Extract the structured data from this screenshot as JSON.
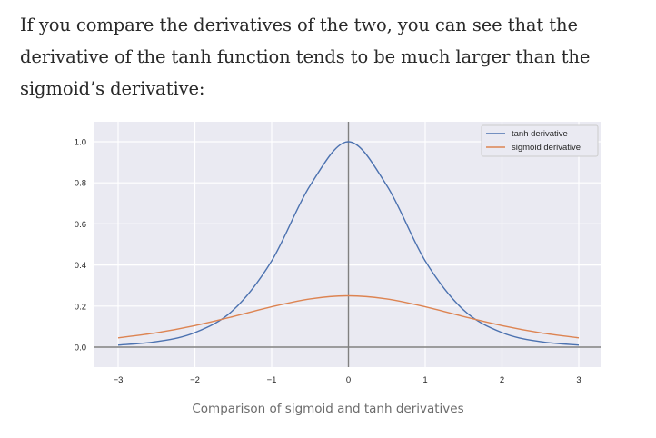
{
  "article": {
    "paragraph": "If you compare the derivatives of the two, you can see that the derivative of the tanh function tends to be much larger than the sigmoid’s derivative:",
    "caption": "Comparison of sigmoid and tanh derivatives"
  },
  "chart_data": {
    "type": "line",
    "title": "",
    "xlabel": "",
    "ylabel": "",
    "xlim": [
      -3.2,
      3.3
    ],
    "ylim": [
      -0.05,
      1.1
    ],
    "xticks": [
      -3,
      -2,
      -1,
      0,
      1,
      2,
      3
    ],
    "xtick_labels": [
      "−3",
      "−2",
      "−1",
      "0",
      "1",
      "2",
      "3"
    ],
    "yticks": [
      0.0,
      0.2,
      0.4,
      0.6,
      0.8,
      1.0
    ],
    "ytick_labels": [
      "0.0",
      "0.2",
      "0.4",
      "0.6",
      "0.8",
      "1.0"
    ],
    "grid": true,
    "legend_position": "top-right",
    "x": [
      -3,
      -2.5,
      -2,
      -1.5,
      -1,
      -0.5,
      0,
      0.5,
      1,
      1.5,
      2,
      2.5,
      3
    ],
    "series": [
      {
        "name": "tanh derivative",
        "color": "#4c72b0",
        "values": [
          0.0099,
          0.0266,
          0.0707,
          0.1807,
          0.42,
          0.7864,
          1.0,
          0.7864,
          0.42,
          0.1807,
          0.0707,
          0.0266,
          0.0099
        ]
      },
      {
        "name": "sigmoid derivative",
        "color": "#dd8452",
        "values": [
          0.0452,
          0.0701,
          0.105,
          0.1491,
          0.1966,
          0.235,
          0.25,
          0.235,
          0.1966,
          0.1491,
          0.105,
          0.0701,
          0.0452
        ]
      }
    ]
  }
}
